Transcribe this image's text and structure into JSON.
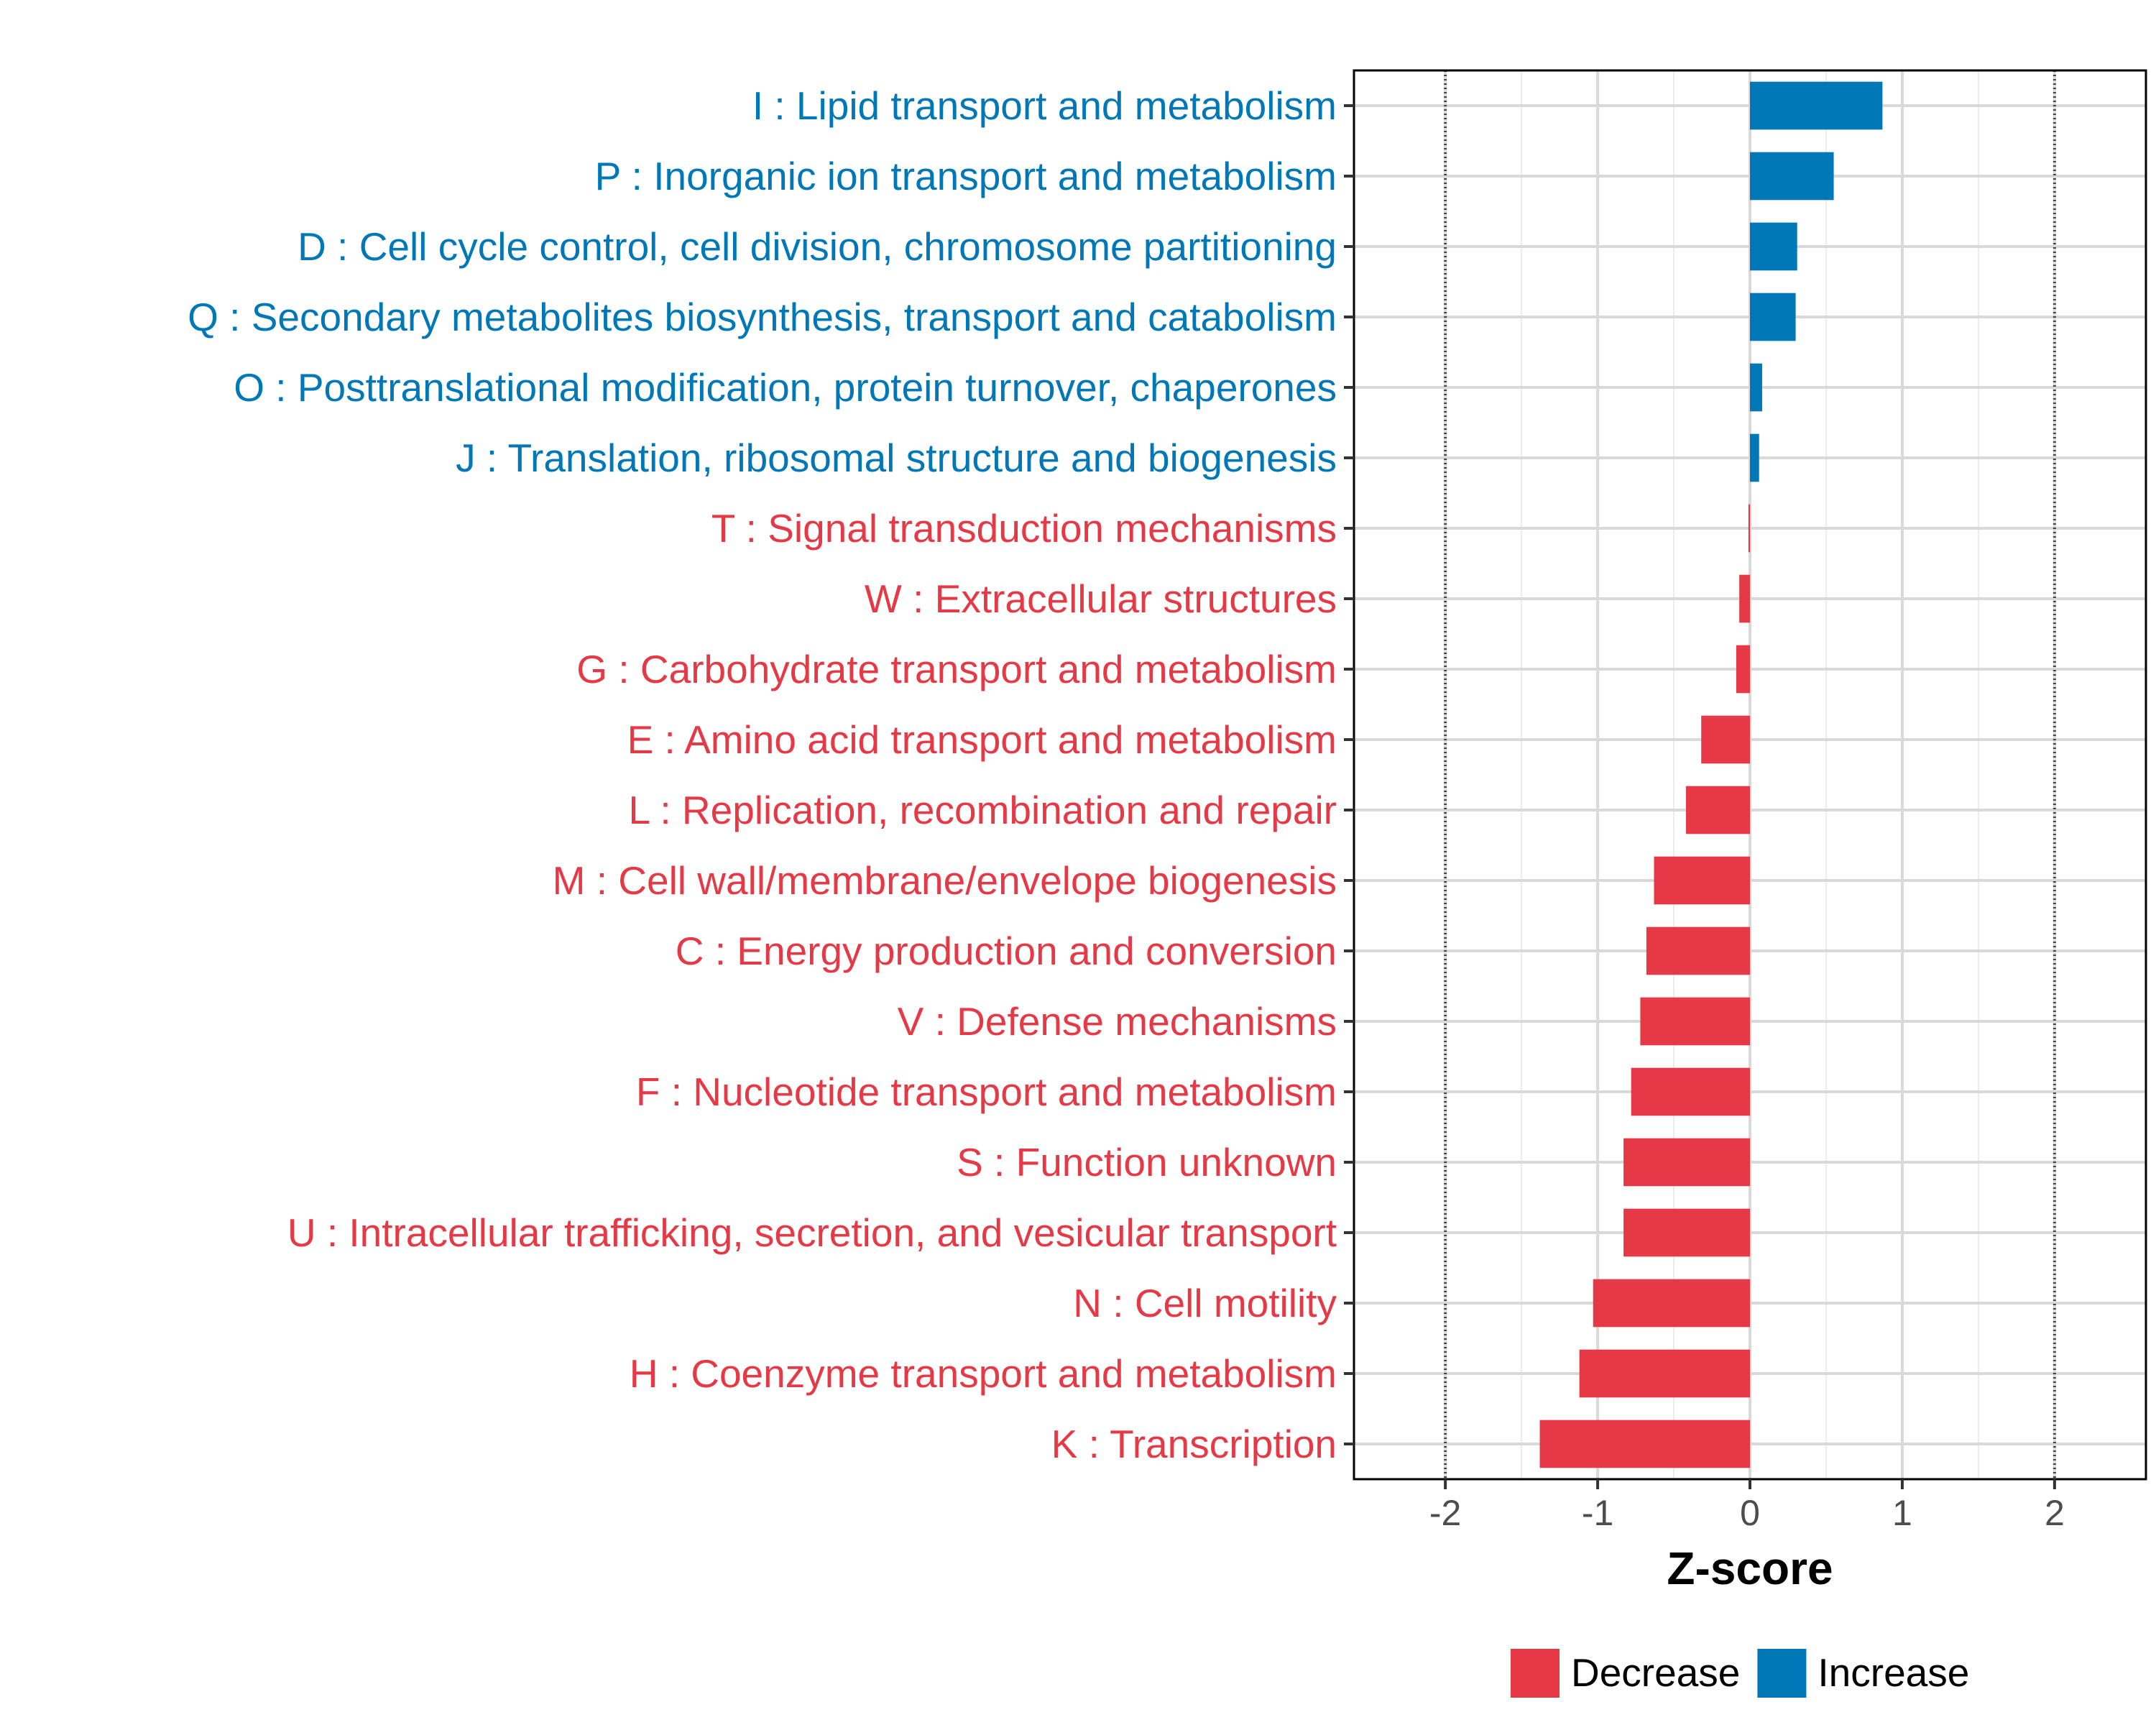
{
  "chart_data": {
    "type": "bar",
    "orientation": "horizontal",
    "title": "",
    "xlabel": "Z-score",
    "ylabel": "",
    "xlim": [
      -2.6,
      2.6
    ],
    "x_ticks": [
      -2,
      -1,
      0,
      1,
      2
    ],
    "x_tick_labels": [
      "-2",
      "-1",
      "0",
      "1",
      "2"
    ],
    "reference_lines": [
      -2,
      2
    ],
    "grid": true,
    "colors": {
      "Decrease": "#e63946",
      "Increase": "#0077b6"
    },
    "categories": [
      "I : Lipid transport and metabolism",
      "P : Inorganic ion transport and metabolism",
      "D : Cell cycle control, cell division, chromosome partitioning",
      "Q : Secondary metabolites biosynthesis, transport and catabolism",
      "O : Posttranslational modification, protein turnover, chaperones",
      "J : Translation, ribosomal structure and biogenesis",
      "T : Signal transduction mechanisms",
      "W : Extracellular structures",
      "G : Carbohydrate transport and metabolism",
      "E : Amino acid transport and metabolism",
      "L : Replication, recombination and repair",
      "M : Cell wall/membrane/envelope biogenesis",
      "C : Energy production and conversion",
      "V : Defense mechanisms",
      "F : Nucleotide transport and metabolism",
      "S : Function unknown",
      "U : Intracellular trafficking, secretion, and vesicular transport",
      "N : Cell motility",
      "H : Coenzyme transport and metabolism",
      "K : Transcription"
    ],
    "values": [
      0.87,
      0.55,
      0.31,
      0.3,
      0.08,
      0.06,
      -0.01,
      -0.07,
      -0.09,
      -0.32,
      -0.42,
      -0.63,
      -0.68,
      -0.72,
      -0.78,
      -0.83,
      -0.83,
      -1.03,
      -1.12,
      -1.38
    ],
    "groups": [
      "Increase",
      "Increase",
      "Increase",
      "Increase",
      "Increase",
      "Increase",
      "Decrease",
      "Decrease",
      "Decrease",
      "Decrease",
      "Decrease",
      "Decrease",
      "Decrease",
      "Decrease",
      "Decrease",
      "Decrease",
      "Decrease",
      "Decrease",
      "Decrease",
      "Decrease"
    ],
    "legend": {
      "position": "bottom",
      "entries": [
        {
          "label": "Decrease",
          "color": "#e63946"
        },
        {
          "label": "Increase",
          "color": "#0077b6"
        }
      ]
    }
  }
}
